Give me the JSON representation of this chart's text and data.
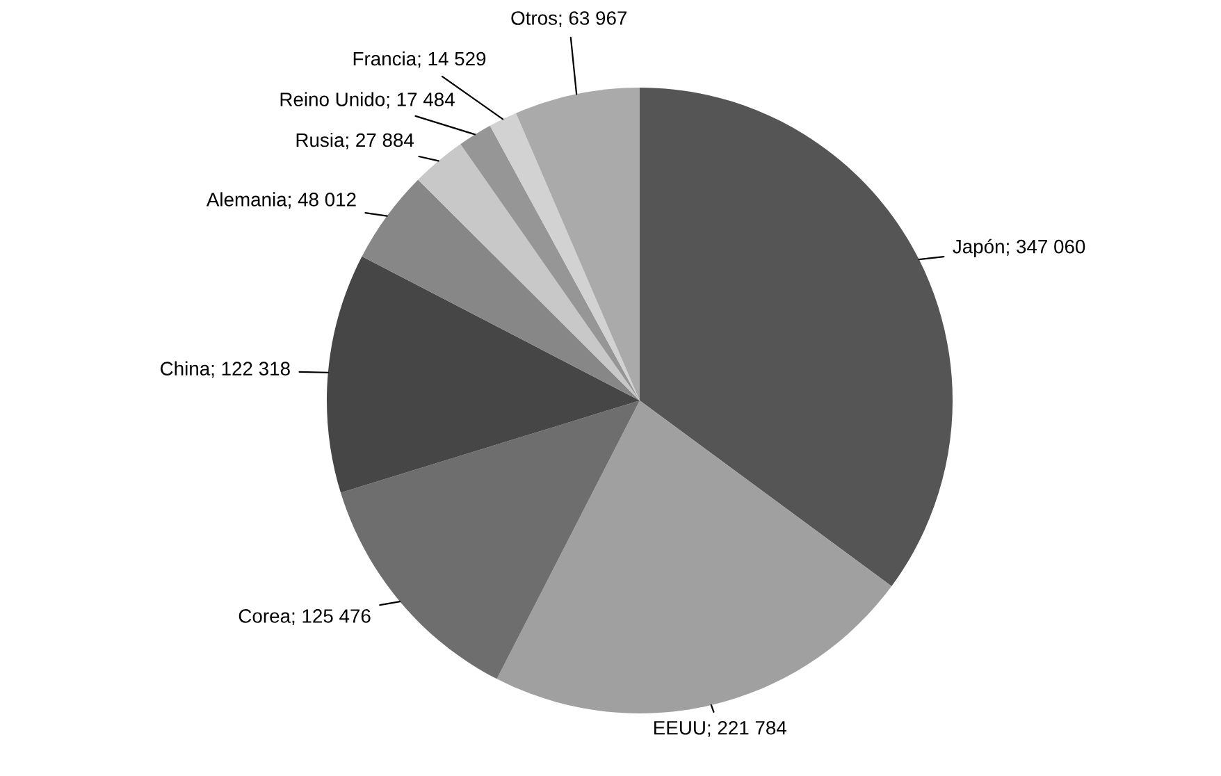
{
  "chart_data": {
    "type": "pie",
    "categories": [
      "Japón",
      "EEUU",
      "Corea",
      "China",
      "Alemania",
      "Rusia",
      "Reino Unido",
      "Francia",
      "Otros"
    ],
    "values": [
      347060,
      221784,
      125476,
      122318,
      48012,
      27884,
      17484,
      14529,
      63967
    ],
    "value_labels": [
      "347 060",
      "221 784",
      "125 476",
      "122 318",
      "48 012",
      "27 884",
      "17 484",
      "14 529",
      "63 967"
    ],
    "colors": [
      "#555555",
      "#a0a0a0",
      "#6e6e6e",
      "#464646",
      "#878787",
      "#c8c8c8",
      "#969696",
      "#d2d2d2",
      "#aaaaaa"
    ],
    "legend": false
  }
}
